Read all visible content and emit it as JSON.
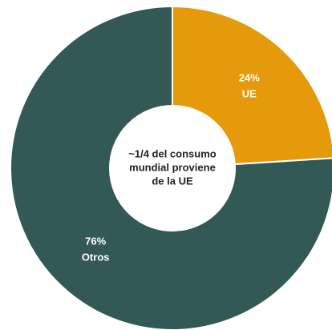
{
  "chart_data": {
    "type": "pie",
    "categories": [
      "UE",
      "Otros"
    ],
    "values": [
      24,
      76
    ],
    "value_labels": [
      "24%",
      "76%"
    ],
    "colors": [
      "#e59a0c",
      "#335957"
    ],
    "center_text": [
      "~1/4 del consumo",
      "mundial proviene",
      "de la UE"
    ]
  }
}
